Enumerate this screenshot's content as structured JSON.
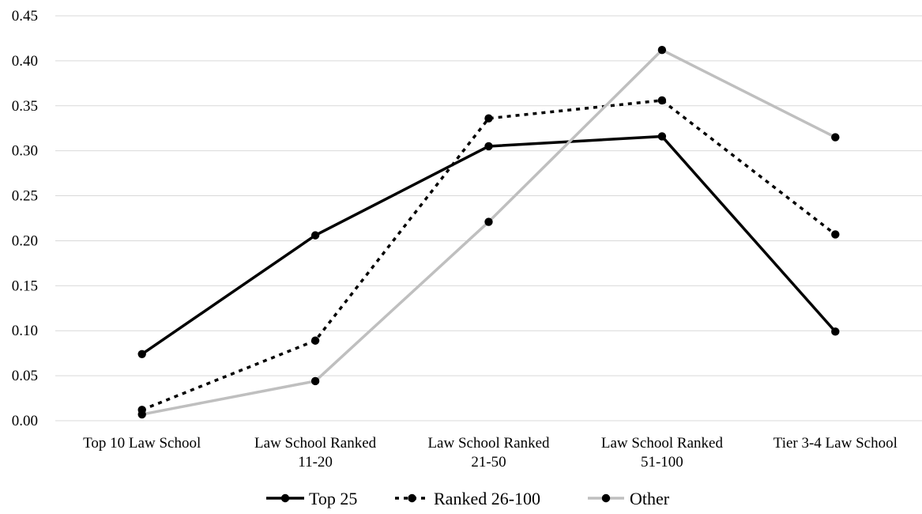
{
  "chart_data": {
    "type": "line",
    "title": "",
    "xlabel": "",
    "ylabel": "",
    "categories": [
      [
        "Top 10 Law School"
      ],
      [
        "Law School Ranked",
        "11-20"
      ],
      [
        "Law School Ranked",
        "21-50"
      ],
      [
        "Law School Ranked",
        "51-100"
      ],
      [
        "Tier 3-4 Law School"
      ]
    ],
    "ylim": [
      0,
      0.45
    ],
    "yticks": [
      "0.00",
      "0.05",
      "0.10",
      "0.15",
      "0.20",
      "0.25",
      "0.30",
      "0.35",
      "0.40",
      "0.45"
    ],
    "grid": "horizontal",
    "legend_position": "bottom",
    "series": [
      {
        "name": "Top 25",
        "values": [
          0.074,
          0.206,
          0.305,
          0.316,
          0.099
        ],
        "color": "#000000",
        "dash": "solid"
      },
      {
        "name": "Ranked 26-100",
        "values": [
          0.012,
          0.089,
          0.336,
          0.356,
          0.207
        ],
        "color": "#000000",
        "dash": "dotted"
      },
      {
        "name": "Other",
        "values": [
          0.007,
          0.044,
          0.221,
          0.412,
          0.315
        ],
        "color": "#bfbfbf",
        "dash": "solid"
      }
    ]
  }
}
